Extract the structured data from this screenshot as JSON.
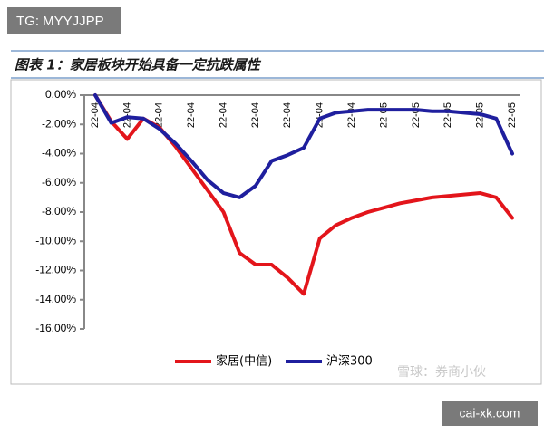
{
  "watermark_top": "TG: MYYJJPP",
  "watermark_chart": "雪球：券商小伙",
  "watermark_bottom": "cai-xk.com",
  "chart_data": {
    "type": "line",
    "title": "图表 1：家居板块开始具备一定抗跌属性",
    "categories": [
      "22-04",
      null,
      "22-04",
      null,
      "22-04",
      null,
      "22-04",
      null,
      "22-04",
      null,
      "22-04",
      null,
      "22-04",
      null,
      "22-04",
      null,
      "22-04",
      null,
      "22-05",
      null,
      "22-05",
      null,
      "22-05",
      null,
      "22-05",
      null,
      "22-05"
    ],
    "series": [
      {
        "name": "家居(中信)",
        "color": "#e3151b",
        "values": [
          0,
          -1.8,
          -3.0,
          -1.6,
          -2.2,
          -3.5,
          -5.0,
          -6.5,
          -8.0,
          -10.8,
          -11.6,
          -11.6,
          -12.5,
          -13.6,
          -9.8,
          -8.9,
          -8.4,
          -8.0,
          -7.7,
          -7.4,
          -7.2,
          -7.0,
          -6.9,
          -6.8,
          -6.7,
          -7.0,
          -8.4
        ]
      },
      {
        "name": "沪深300",
        "color": "#1f1f9e",
        "values": [
          0,
          -1.9,
          -1.5,
          -1.6,
          -2.3,
          -3.3,
          -4.5,
          -5.8,
          -6.7,
          -7.0,
          -6.2,
          -4.5,
          -4.1,
          -3.6,
          -1.6,
          -1.2,
          -1.1,
          -1.0,
          -1.0,
          -1.0,
          -1.0,
          -1.1,
          -1.1,
          -1.2,
          -1.3,
          -1.6,
          -4.0
        ]
      }
    ],
    "ylim": [
      -16,
      0
    ],
    "yticks": [
      {
        "value": 0,
        "label": "0.00%"
      },
      {
        "value": -2,
        "label": "-2.00%"
      },
      {
        "value": -4,
        "label": "-4.00%"
      },
      {
        "value": -6,
        "label": "-6.00%"
      },
      {
        "value": -8,
        "label": "-8.00%"
      },
      {
        "value": -10,
        "label": "-10.00%"
      },
      {
        "value": -12,
        "label": "-12.00%"
      },
      {
        "value": -14,
        "label": "-14.00%"
      },
      {
        "value": -16,
        "label": "-16.00%"
      }
    ],
    "grid": false
  }
}
